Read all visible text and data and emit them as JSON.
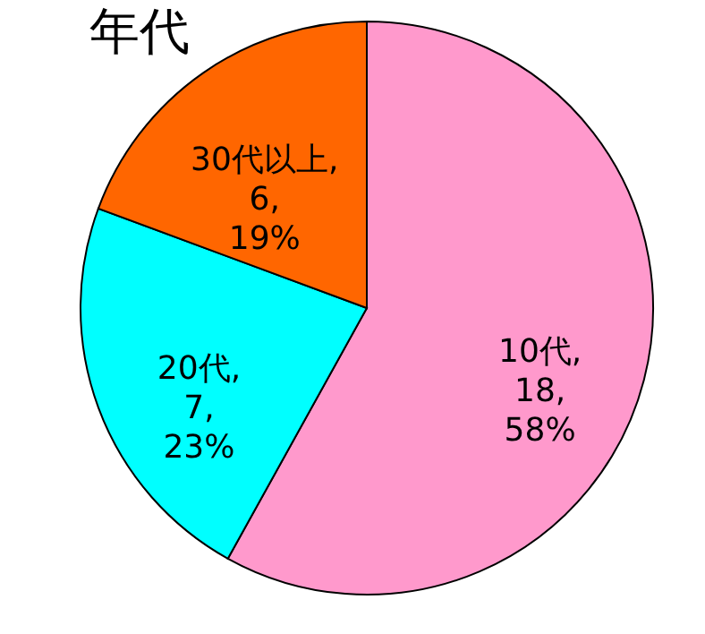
{
  "chart_data": {
    "type": "pie",
    "title": "年代",
    "categories": [
      "10代",
      "20代",
      "30代以上"
    ],
    "values": [
      18,
      7,
      6
    ],
    "colors": [
      "#ff99cc",
      "#00ffff",
      "#ff6600"
    ],
    "value_labels": [
      ", 18, 58%",
      ", 7, 23%",
      ", 6, 19%"
    ],
    "legend": false
  }
}
